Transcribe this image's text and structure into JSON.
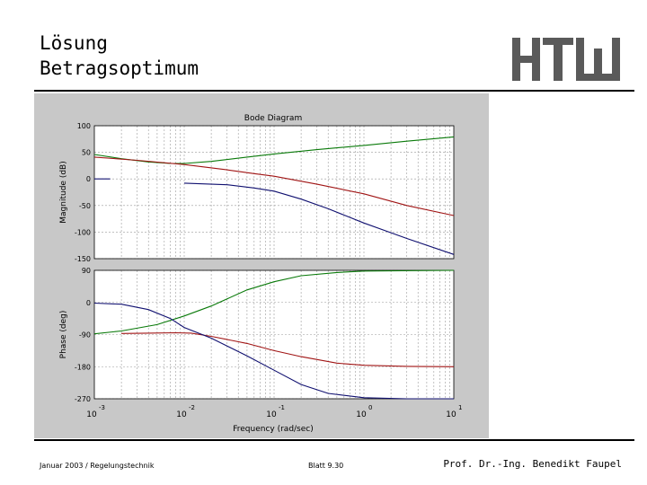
{
  "slide": {
    "title_line1": "Lösung",
    "title_line2": "Betragsoptimum",
    "logo_text": "HTW",
    "footer_left": "Januar 2003 / Regelungstechnik",
    "footer_mid": "Blatt 9.30",
    "footer_right": "Prof. Dr.-Ing. Benedikt Faupel"
  },
  "colors": {
    "figure_bg": "#c8c8c8",
    "axes_bg": "#ffffff",
    "grid": "#9a9a9a",
    "series": [
      "#0a7a0a",
      "#a01414",
      "#101070"
    ]
  },
  "chart_data": {
    "type": "line",
    "title": "Bode Diagram",
    "xlabel": "Frequency (rad/sec)",
    "xscale": "log",
    "xlim": [
      0.001,
      10
    ],
    "xticks": [
      {
        "base": "10",
        "exp": "-3",
        "value": 0.001
      },
      {
        "base": "10",
        "exp": "-2",
        "value": 0.01
      },
      {
        "base": "10",
        "exp": "-1",
        "value": 0.1
      },
      {
        "base": "10",
        "exp": "0",
        "value": 1
      },
      {
        "base": "10",
        "exp": "1",
        "value": 10
      }
    ],
    "grid": true,
    "panels": [
      {
        "name": "magnitude",
        "ylabel": "Magnitude (dB)",
        "ylim": [
          -150,
          100
        ],
        "yticks": [
          "100",
          "50",
          "0",
          "-50",
          "-100",
          "-150"
        ],
        "ytick_values": [
          100,
          50,
          0,
          -50,
          -100,
          -150
        ],
        "series": [
          {
            "color_index": 0,
            "points": [
              [
                0.001,
                46
              ],
              [
                0.002,
                38
              ],
              [
                0.004,
                32
              ],
              [
                0.007,
                29
              ],
              [
                0.01,
                29
              ],
              [
                0.02,
                33
              ],
              [
                0.05,
                41
              ],
              [
                0.1,
                47
              ],
              [
                0.3,
                55
              ],
              [
                1,
                63
              ],
              [
                3,
                71
              ],
              [
                10,
                79
              ]
            ]
          },
          {
            "color_index": 1,
            "points": [
              [
                0.001,
                41
              ],
              [
                0.003,
                35
              ],
              [
                0.01,
                27
              ],
              [
                0.03,
                17
              ],
              [
                0.06,
                10
              ],
              [
                0.1,
                5
              ],
              [
                0.3,
                -10
              ],
              [
                1,
                -28
              ],
              [
                3,
                -50
              ],
              [
                10,
                -69
              ]
            ]
          },
          {
            "color_index": 2,
            "segments": [
              [
                [
                  0.001,
                  0
                ],
                [
                  0.0015,
                  0
                ]
              ],
              [
                [
                  0.01,
                  -8
                ],
                [
                  0.03,
                  -11
                ],
                [
                  0.06,
                  -17
                ],
                [
                  0.1,
                  -23
                ],
                [
                  0.2,
                  -38
                ],
                [
                  0.4,
                  -56
                ],
                [
                  1,
                  -83
                ],
                [
                  3,
                  -112
                ],
                [
                  10,
                  -142
                ]
              ]
            ]
          }
        ]
      },
      {
        "name": "phase",
        "ylabel": "Phase (deg)",
        "ylim": [
          -270,
          90
        ],
        "yticks": [
          "90",
          "0",
          "-90",
          "-180",
          "-270"
        ],
        "ytick_values": [
          90,
          0,
          -90,
          -180,
          -270
        ],
        "series": [
          {
            "color_index": 0,
            "points": [
              [
                0.001,
                -88
              ],
              [
                0.002,
                -80
              ],
              [
                0.005,
                -62
              ],
              [
                0.01,
                -38
              ],
              [
                0.02,
                -10
              ],
              [
                0.05,
                35
              ],
              [
                0.1,
                58
              ],
              [
                0.2,
                75
              ],
              [
                0.5,
                84
              ],
              [
                1,
                88
              ],
              [
                10,
                90
              ]
            ]
          },
          {
            "color_index": 1,
            "segments": [
              [
                [
                  0.002,
                  -87
                ],
                [
                  0.004,
                  -86
                ],
                [
                  0.008,
                  -85
                ],
                [
                  0.012,
                  -86
                ],
                [
                  0.02,
                  -95
                ],
                [
                  0.05,
                  -115
                ],
                [
                  0.1,
                  -135
                ],
                [
                  0.2,
                  -152
                ],
                [
                  0.5,
                  -170
                ],
                [
                  1,
                  -176
                ],
                [
                  3,
                  -179
                ],
                [
                  10,
                  -180
                ]
              ]
            ]
          },
          {
            "color_index": 2,
            "points": [
              [
                0.001,
                -2
              ],
              [
                0.002,
                -5
              ],
              [
                0.004,
                -20
              ],
              [
                0.007,
                -45
              ],
              [
                0.01,
                -70
              ],
              [
                0.02,
                -100
              ],
              [
                0.05,
                -150
              ],
              [
                0.1,
                -190
              ],
              [
                0.2,
                -230
              ],
              [
                0.4,
                -255
              ],
              [
                1,
                -267
              ],
              [
                3,
                -270
              ],
              [
                10,
                -270
              ]
            ]
          }
        ]
      }
    ]
  }
}
